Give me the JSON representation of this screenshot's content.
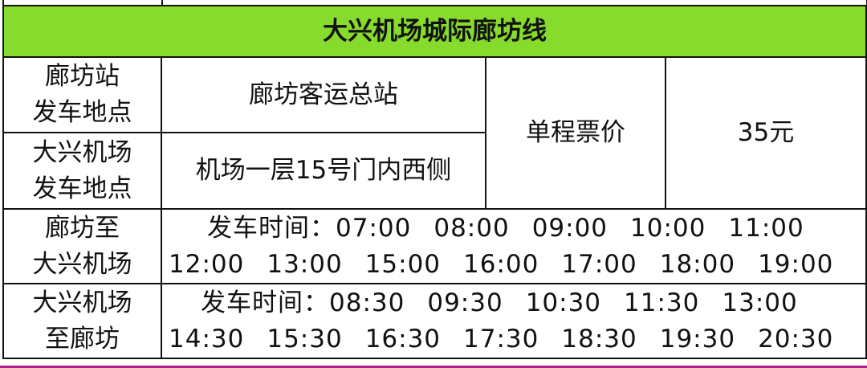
{
  "title": "大兴机场城际廊坊线",
  "langfang_station_label": [
    "廊坊站",
    "发车地点"
  ],
  "langfang_station_value": "廊坊客运总站",
  "airport_station_label": [
    "大兴机场",
    "发车地点"
  ],
  "airport_station_value": "机场一层15号门内西侧",
  "fare_label": "单程票价",
  "fare_value": "35元",
  "route1": {
    "label": [
      "廊坊至",
      "大兴机场"
    ],
    "prefix": "发车时间：",
    "color": "#1a73c5",
    "times": [
      "07:00",
      "08:00",
      "09:00",
      "10:00",
      "11:00",
      "12:00",
      "13:00",
      "15:00",
      "16:00",
      "17:00",
      "18:00",
      "19:00"
    ]
  },
  "route2": {
    "label": [
      "大兴机场",
      "至廊坊"
    ],
    "prefix": "发车时间：",
    "color": "#ff0000",
    "times": [
      "08:30",
      "09:30",
      "10:30",
      "11:30",
      "13:00",
      "14:30",
      "15:30",
      "16:30",
      "17:30",
      "18:30",
      "19:30",
      "20:30"
    ]
  },
  "header_color": "#86db2d"
}
